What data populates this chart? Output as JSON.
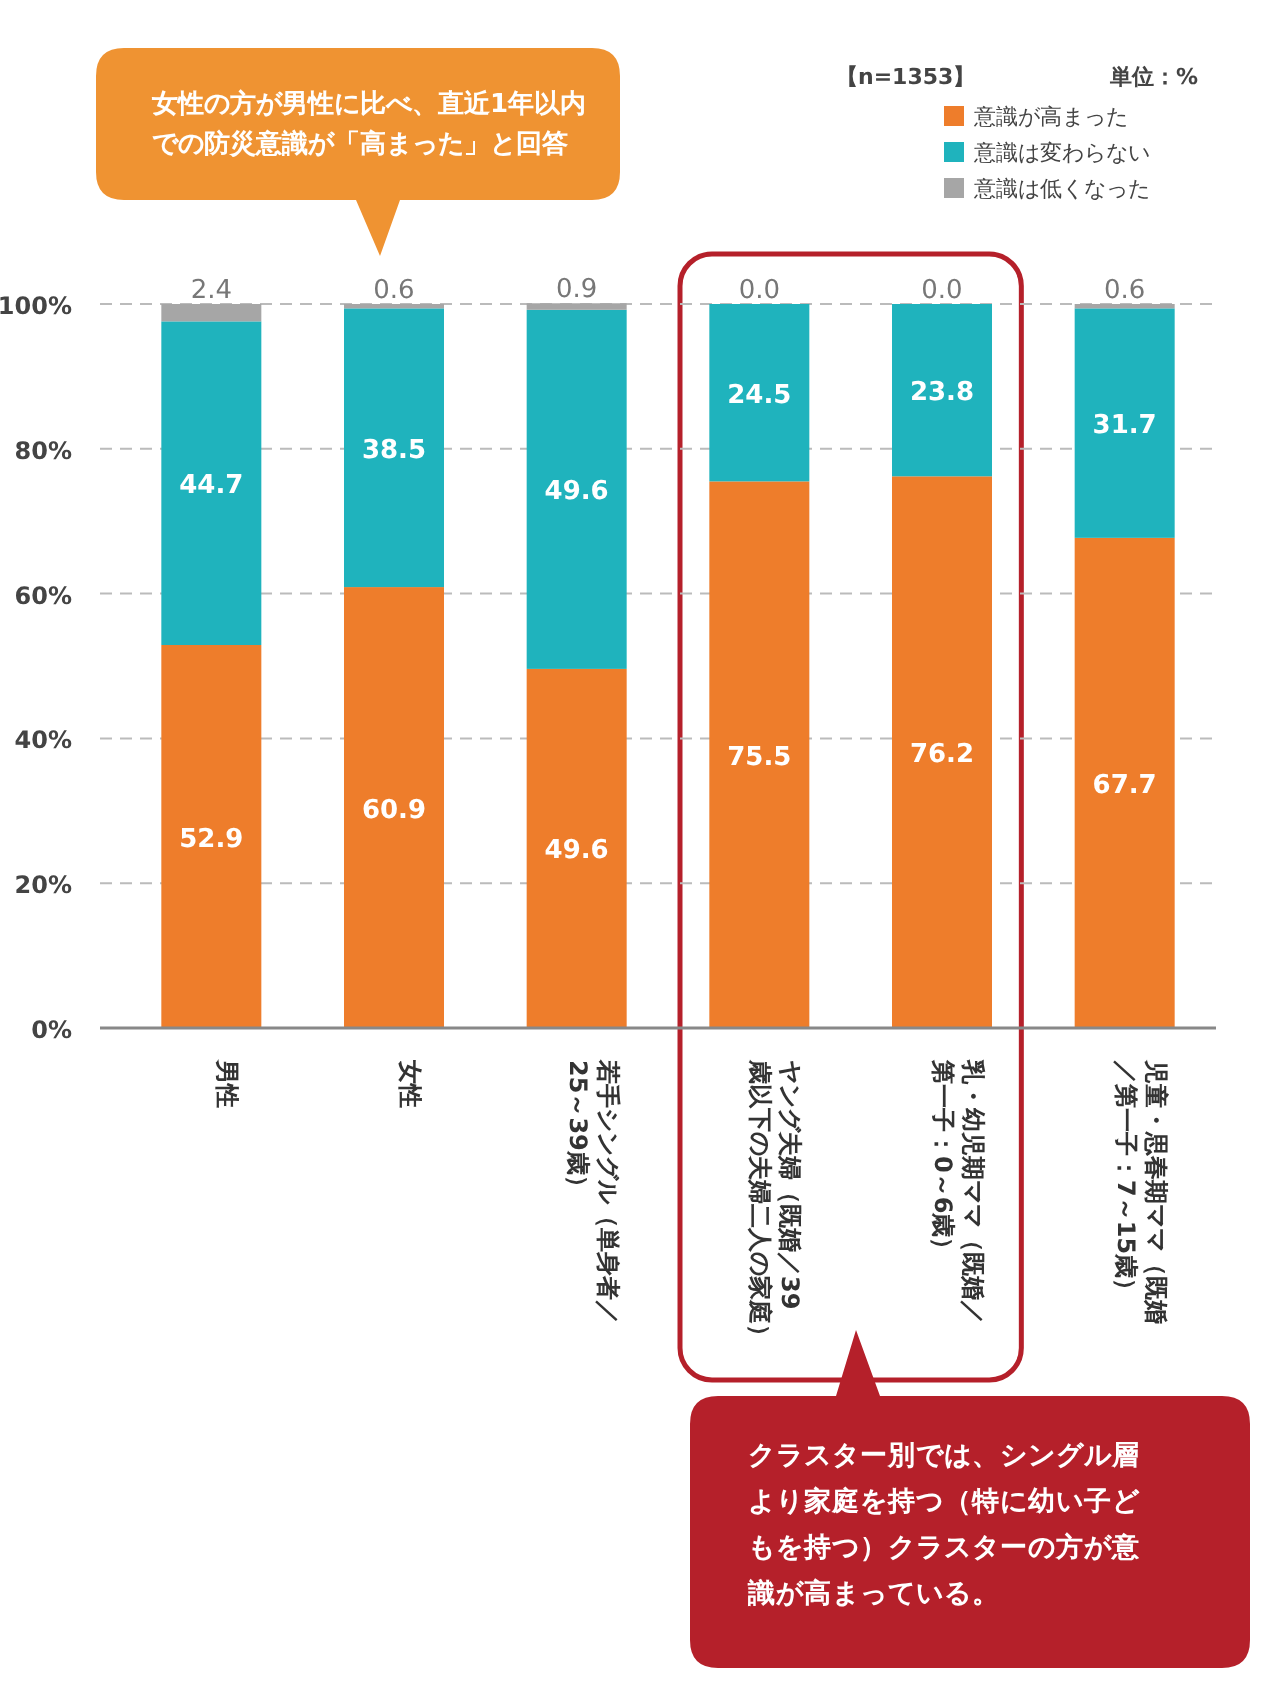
{
  "chart_data": {
    "type": "bar",
    "stacked": true,
    "categories": [
      "男性",
      "女性",
      "若手シングル（単身者／25～39歳）",
      "ヤング夫婦（既婚／39歳以下の夫婦二人の家庭）",
      "乳・幼児期ママ（既婚／第一子：0～6歳）",
      "児童・思春期ママ（既婚／第一子：7～15歳）"
    ],
    "series": [
      {
        "name": "意識が高まった",
        "color": "#ee7d2b",
        "values": [
          52.9,
          60.9,
          49.6,
          75.5,
          76.2,
          67.7
        ]
      },
      {
        "name": "意識は変わらない",
        "color": "#1fb3bd",
        "values": [
          44.7,
          38.5,
          49.6,
          24.5,
          23.8,
          31.7
        ]
      },
      {
        "name": "意識は低くなった",
        "color": "#a6a6a6",
        "values": [
          2.4,
          0.6,
          0.9,
          0.0,
          0.0,
          0.6
        ],
        "value_labels": [
          "2.4",
          "0.6",
          "0.9",
          "0.0",
          "0.0",
          "0.6"
        ]
      }
    ],
    "ylim": [
      0,
      100
    ],
    "yticks": [
      {
        "value": 0,
        "label": "0%"
      },
      {
        "value": 20,
        "label": "20%"
      },
      {
        "value": 40,
        "label": "40%"
      },
      {
        "value": 60,
        "label": "60%"
      },
      {
        "value": 80,
        "label": "80%"
      },
      {
        "value": 100,
        "label": "100%"
      }
    ],
    "grid": "y",
    "legend": "top right",
    "data_labels": true,
    "annotations": [
      "【n=1353】",
      "単位：%",
      "女性の方が男性に比べ、直近1年以内での防災意識が「高まった」と回答",
      "クラスター別では、シングル層より家庭を持つ（特に幼い子どもを持つ）クラスターの方が意識が高まっている。"
    ]
  }
}
